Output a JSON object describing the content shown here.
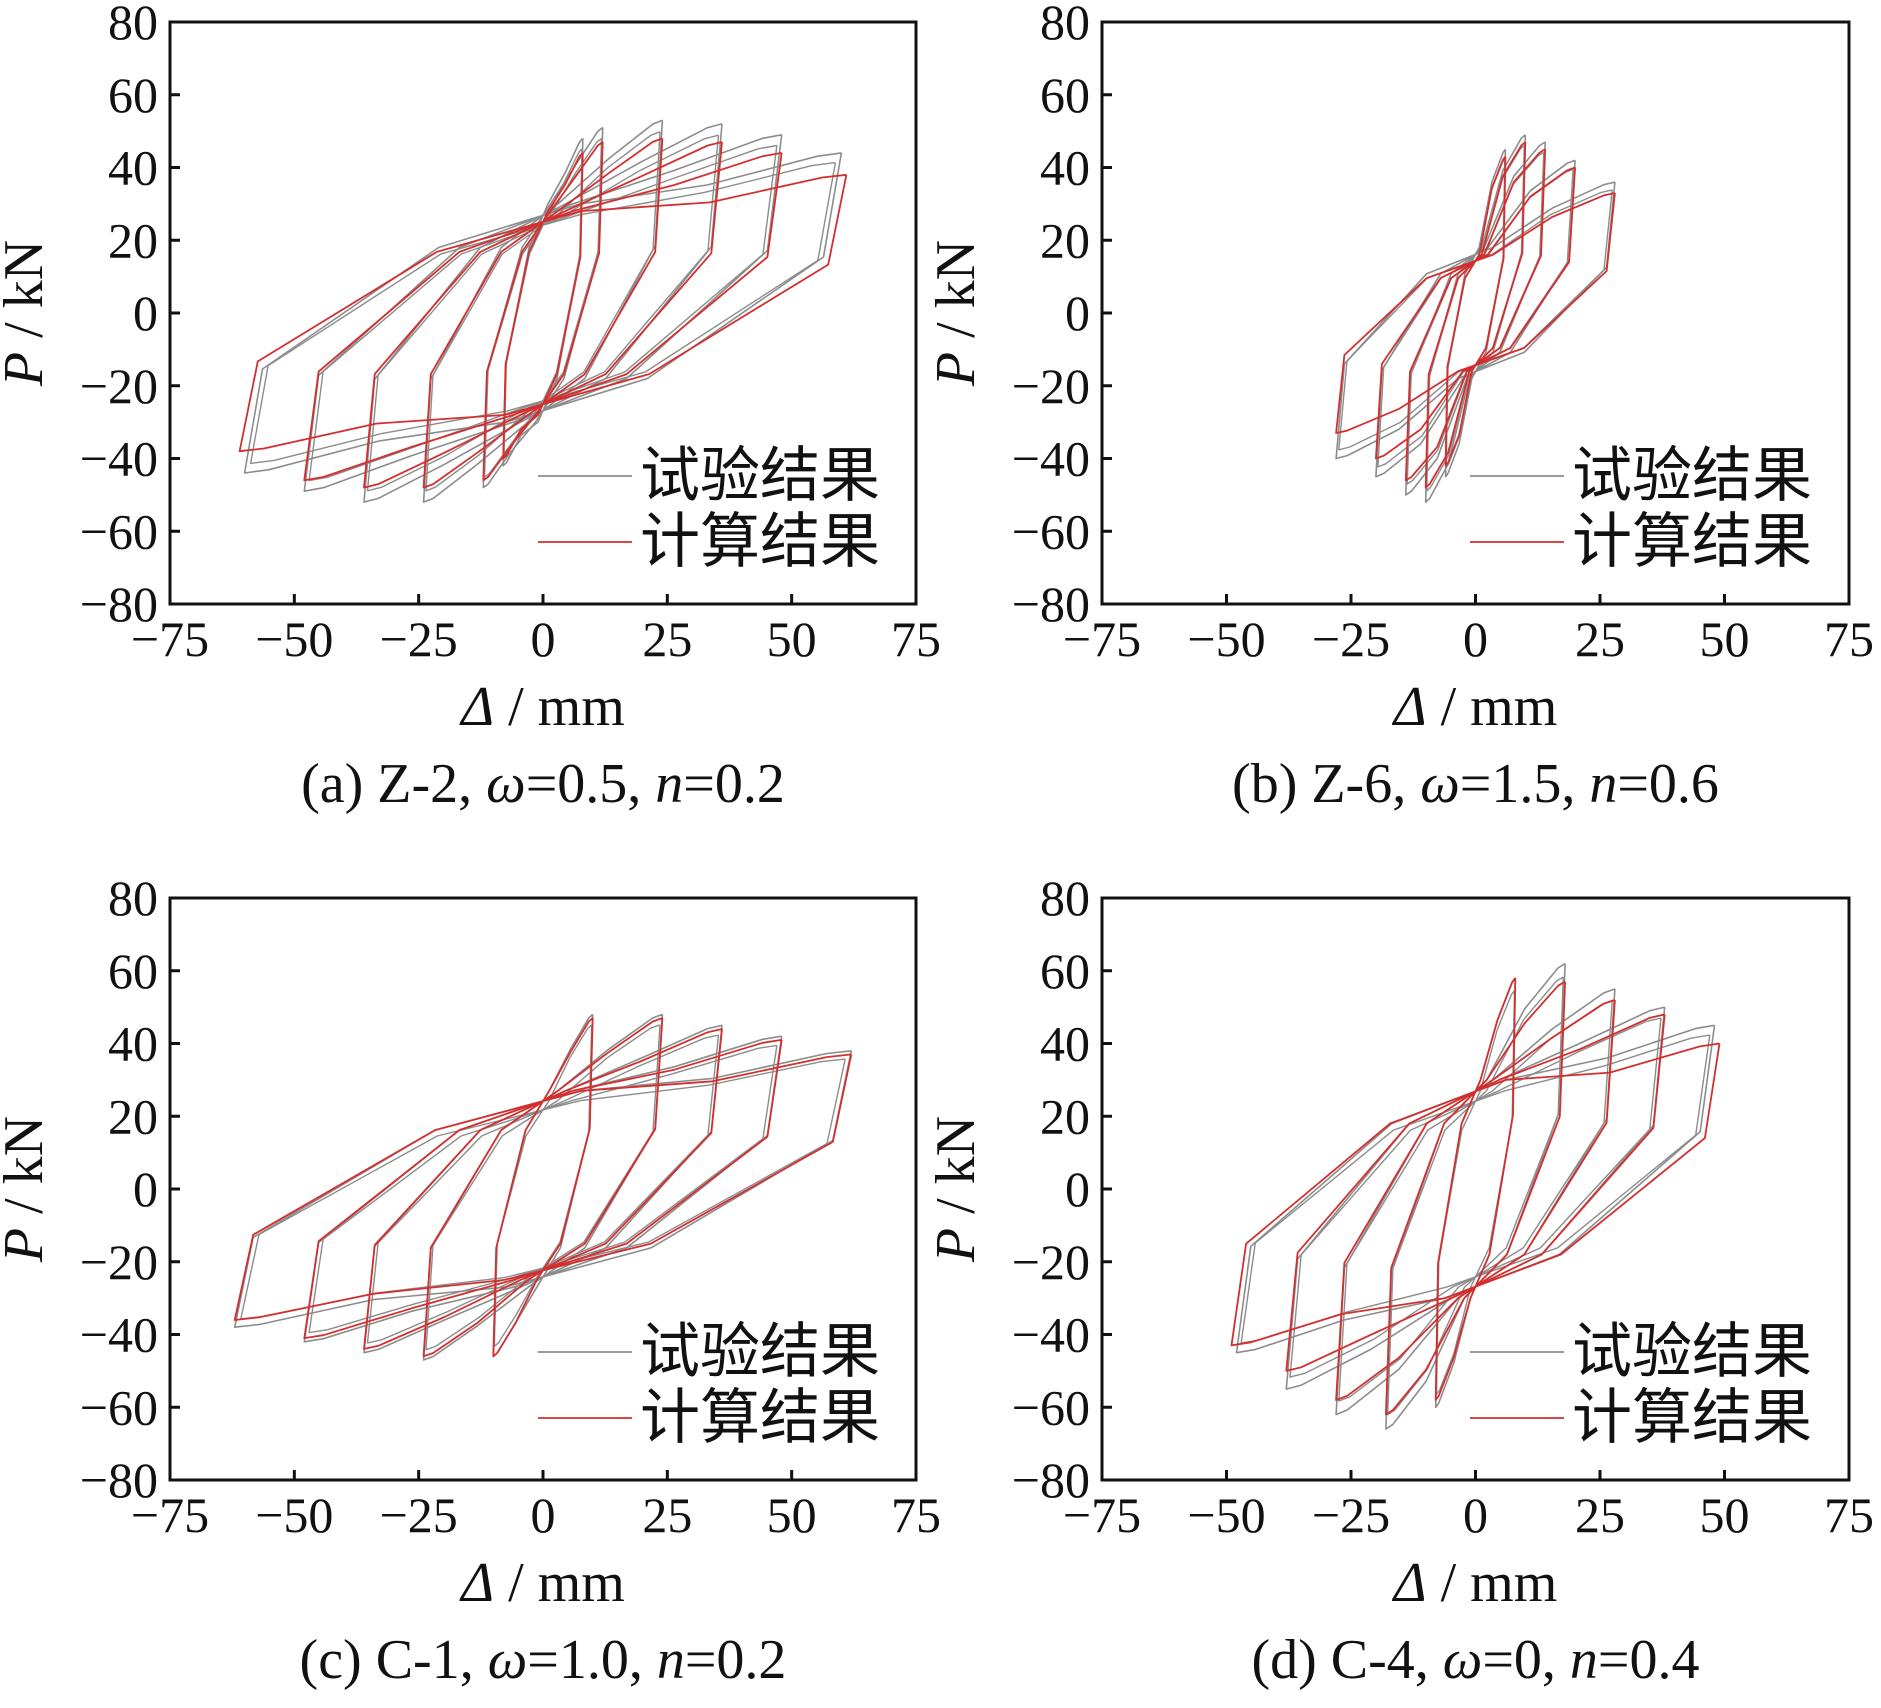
{
  "chart_data": [
    {
      "type": "line",
      "caption": "(a) Z-2,  ω=0.5, n=0.2",
      "caption_parts": {
        "label": "(a) Z-2,  ",
        "omega": "ω",
        "omega_value": "=0.5, ",
        "n": "n",
        "n_value": "=0.2"
      },
      "xlabel": "Δ / mm",
      "ylabel": "P / kN",
      "xlabel_parts": {
        "symbol": "Δ",
        "unit": " / mm"
      },
      "ylabel_parts": {
        "symbol": "P",
        "unit": " / kN"
      },
      "xlim": [
        -75,
        75
      ],
      "ylim": [
        -80,
        80
      ],
      "xticks": [
        -75,
        -50,
        -25,
        0,
        25,
        50,
        75
      ],
      "yticks": [
        -80,
        -60,
        -40,
        -20,
        0,
        20,
        40,
        60,
        80
      ],
      "xtick_labels": [
        "−75",
        "−50",
        "−25",
        "0",
        "25",
        "50",
        "75"
      ],
      "ytick_labels": [
        "−80",
        "−60",
        "−40",
        "−20",
        "0",
        "20",
        "40",
        "60",
        "80"
      ],
      "legend_position": "bottom-right",
      "series": [
        {
          "name": "试验结果",
          "color": "#8c8c8c",
          "amplitudes": [
            8,
            12,
            24,
            36,
            48,
            60
          ],
          "peak_positive": [
            48,
            51,
            53,
            52,
            49,
            44
          ],
          "peak_negative": [
            -42,
            -48,
            -52,
            -52,
            -49,
            -44
          ],
          "pinch_positive": 30,
          "pinch_negative": -30
        },
        {
          "name": "计算结果",
          "color": "#d32f2f",
          "amplitudes": [
            8,
            12,
            24,
            36,
            48,
            61
          ],
          "peak_positive": [
            44,
            47,
            48,
            47,
            44,
            38
          ],
          "peak_negative": [
            -40,
            -46,
            -48,
            -48,
            -46,
            -38
          ],
          "pinch_positive": 28,
          "pinch_negative": -28
        }
      ]
    },
    {
      "type": "line",
      "caption": "(b) Z-6,  ω=1.5, n=0.6",
      "caption_parts": {
        "label": "(b) Z-6,  ",
        "omega": "ω",
        "omega_value": "=1.5, ",
        "n": "n",
        "n_value": "=0.6"
      },
      "xlabel": "Δ / mm",
      "ylabel": "P / kN",
      "xlabel_parts": {
        "symbol": "Δ",
        "unit": " / mm"
      },
      "ylabel_parts": {
        "symbol": "P",
        "unit": " / kN"
      },
      "xlim": [
        -75,
        75
      ],
      "ylim": [
        -80,
        80
      ],
      "xticks": [
        -75,
        -50,
        -25,
        0,
        25,
        50,
        75
      ],
      "yticks": [
        -80,
        -60,
        -40,
        -20,
        0,
        20,
        40,
        60,
        80
      ],
      "xtick_labels": [
        "−75",
        "−50",
        "−25",
        "0",
        "25",
        "50",
        "75"
      ],
      "ytick_labels": [
        "−80",
        "−60",
        "−40",
        "−20",
        "0",
        "20",
        "40",
        "60",
        "80"
      ],
      "legend_position": "bottom-right",
      "series": [
        {
          "name": "试验结果",
          "color": "#8c8c8c",
          "amplitudes": [
            6,
            10,
            14,
            20,
            28
          ],
          "peak_positive": [
            45,
            49,
            47,
            42,
            36
          ],
          "peak_negative": [
            -45,
            -52,
            -50,
            -45,
            -40
          ],
          "pinch_positive": 18,
          "pinch_negative": -18
        },
        {
          "name": "计算结果",
          "color": "#d32f2f",
          "amplitudes": [
            6,
            10,
            14,
            20,
            28
          ],
          "peak_positive": [
            43,
            47,
            45,
            40,
            33
          ],
          "peak_negative": [
            -42,
            -48,
            -46,
            -40,
            -33
          ],
          "pinch_positive": 16,
          "pinch_negative": -16
        }
      ]
    },
    {
      "type": "line",
      "caption": "(c) C-1,  ω=1.0, n=0.2",
      "caption_parts": {
        "label": "(c) C-1,  ",
        "omega": "ω",
        "omega_value": "=1.0, ",
        "n": "n",
        "n_value": "=0.2"
      },
      "xlabel": "Δ / mm",
      "ylabel": "P / kN",
      "xlabel_parts": {
        "symbol": "Δ",
        "unit": " / mm"
      },
      "ylabel_parts": {
        "symbol": "P",
        "unit": " / kN"
      },
      "xlim": [
        -75,
        75
      ],
      "ylim": [
        -80,
        80
      ],
      "xticks": [
        -75,
        -50,
        -25,
        0,
        25,
        50,
        75
      ],
      "yticks": [
        -80,
        -60,
        -40,
        -20,
        0,
        20,
        40,
        60,
        80
      ],
      "xtick_labels": [
        "−75",
        "−50",
        "−25",
        "0",
        "25",
        "50",
        "75"
      ],
      "ytick_labels": [
        "−80",
        "−60",
        "−40",
        "−20",
        "0",
        "20",
        "40",
        "60",
        "80"
      ],
      "legend_position": "bottom-right",
      "series": [
        {
          "name": "试验结果",
          "color": "#8c8c8c",
          "amplitudes": [
            10,
            24,
            36,
            48,
            62
          ],
          "peak_positive": [
            48,
            48,
            45,
            42,
            38
          ],
          "peak_negative": [
            -46,
            -47,
            -45,
            -42,
            -38
          ],
          "pinch_positive": 27,
          "pinch_negative": -27
        },
        {
          "name": "计算结果",
          "color": "#d32f2f",
          "amplitudes": [
            10,
            24,
            36,
            48,
            62
          ],
          "peak_positive": [
            47,
            47,
            44,
            41,
            37
          ],
          "peak_negative": [
            -46,
            -46,
            -44,
            -41,
            -36
          ],
          "pinch_positive": 27,
          "pinch_negative": -25
        }
      ]
    },
    {
      "type": "line",
      "caption": "(d) C-4,  ω=0, n=0.4",
      "caption_parts": {
        "label": "(d) C-4,  ",
        "omega": "ω",
        "omega_value": "=0, ",
        "n": "n",
        "n_value": "=0.4"
      },
      "xlabel": "Δ / mm",
      "ylabel": "P / kN",
      "xlabel_parts": {
        "symbol": "Δ",
        "unit": " / mm"
      },
      "ylabel_parts": {
        "symbol": "P",
        "unit": " / kN"
      },
      "xlim": [
        -75,
        75
      ],
      "ylim": [
        -80,
        80
      ],
      "xticks": [
        -75,
        -50,
        -25,
        0,
        25,
        50,
        75
      ],
      "yticks": [
        -80,
        -60,
        -40,
        -20,
        0,
        20,
        40,
        60,
        80
      ],
      "xtick_labels": [
        "−75",
        "−50",
        "−25",
        "0",
        "25",
        "50",
        "75"
      ],
      "ytick_labels": [
        "−80",
        "−60",
        "−40",
        "−20",
        "0",
        "20",
        "40",
        "60",
        "80"
      ],
      "legend_position": "bottom-right",
      "series": [
        {
          "name": "试验结果",
          "color": "#8c8c8c",
          "amplitudes": [
            8,
            18,
            28,
            38,
            48
          ],
          "peak_positive": [
            58,
            62,
            55,
            50,
            45
          ],
          "peak_negative": [
            -60,
            -66,
            -62,
            -55,
            -45
          ],
          "pinch_positive": 30,
          "pinch_negative": -30
        },
        {
          "name": "计算结果",
          "color": "#d32f2f",
          "amplitudes": [
            8,
            18,
            28,
            38,
            49
          ],
          "peak_positive": [
            58,
            57,
            52,
            48,
            40
          ],
          "peak_negative": [
            -58,
            -62,
            -58,
            -50,
            -43
          ],
          "pinch_positive": 30,
          "pinch_negative": -30
        }
      ]
    }
  ]
}
